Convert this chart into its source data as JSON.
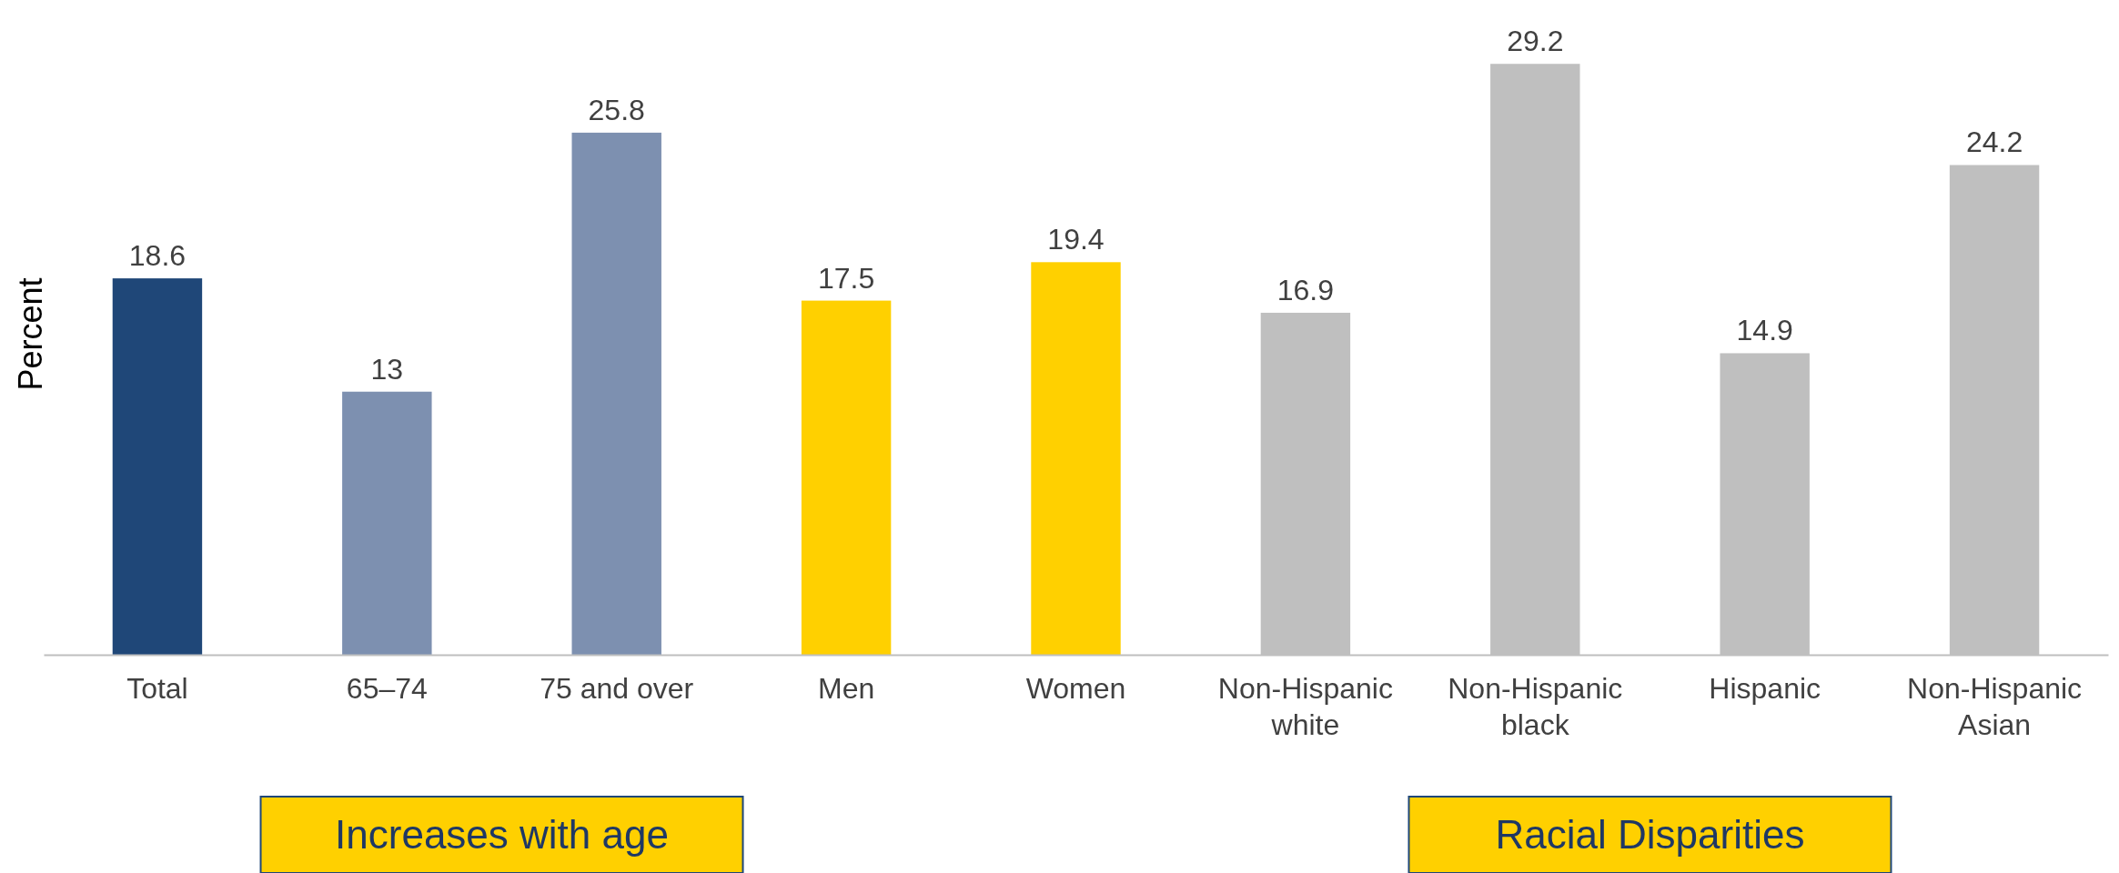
{
  "chart_data": {
    "type": "bar",
    "ylabel": "Percent",
    "categories": [
      "Total",
      "65–74",
      "75 and over",
      "Men",
      "Women",
      "Non-Hispanic white",
      "Non-Hispanic black",
      "Hispanic",
      "Non-Hispanic Asian"
    ],
    "values": [
      18.6,
      13,
      25.8,
      17.5,
      19.4,
      16.9,
      29.2,
      14.9,
      24.2
    ],
    "colors": [
      "#1f4778",
      "#7d90b0",
      "#7d90b0",
      "#ffd000",
      "#ffd000",
      "#bfbfbf",
      "#bfbfbf",
      "#bfbfbf",
      "#bfbfbf"
    ],
    "data_labels": true,
    "annotations": [
      "Increases with age",
      "Racial Disparities"
    ]
  }
}
